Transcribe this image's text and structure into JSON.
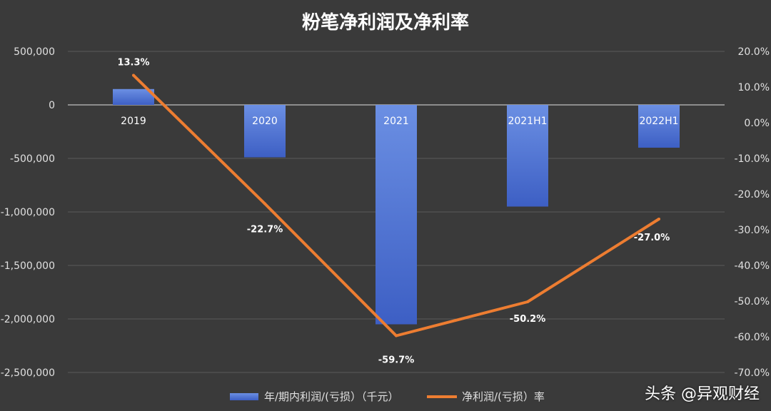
{
  "watermark": "头条 @异观财经",
  "chart_data": {
    "type": "bar+line",
    "title": "粉笔净利润及净利率",
    "categories": [
      "2019",
      "2020",
      "2021",
      "2021H1",
      "2022H1"
    ],
    "series": [
      {
        "name": "年/期内利润/(亏损）（千元）",
        "type": "bar",
        "axis": "left",
        "color": "#4a6fd1",
        "values": [
          148000,
          -490000,
          -2050000,
          -950000,
          -400000
        ]
      },
      {
        "name": "净利润/(亏损）率",
        "type": "line",
        "axis": "right",
        "color": "#ed7d31",
        "values": [
          13.3,
          -22.7,
          -59.7,
          -50.2,
          -27.0
        ],
        "labels": [
          "13.3%",
          "-22.7%",
          "-59.7%",
          "-50.2%",
          "-27.0%"
        ]
      }
    ],
    "y_left": {
      "min": -2500000,
      "max": 500000,
      "ticks": [
        500000,
        0,
        -500000,
        -1000000,
        -1500000,
        -2000000,
        -2500000
      ],
      "tick_labels": [
        "500,000",
        "0",
        "-500,000",
        "-1,000,000",
        "-1,500,000",
        "-2,000,000",
        "-2,500,000"
      ]
    },
    "y_right": {
      "min": -70,
      "max": 20,
      "ticks": [
        20,
        10,
        0,
        -10,
        -20,
        -30,
        -40,
        -50,
        -60,
        -70
      ],
      "tick_labels": [
        "20.0%",
        "10.0%",
        "0.0%",
        "-10.0%",
        "-20.0%",
        "-30.0%",
        "-40.0%",
        "-50.0%",
        "-60.0%",
        "-70.0%"
      ]
    },
    "grid": true,
    "legend": "bottom"
  }
}
